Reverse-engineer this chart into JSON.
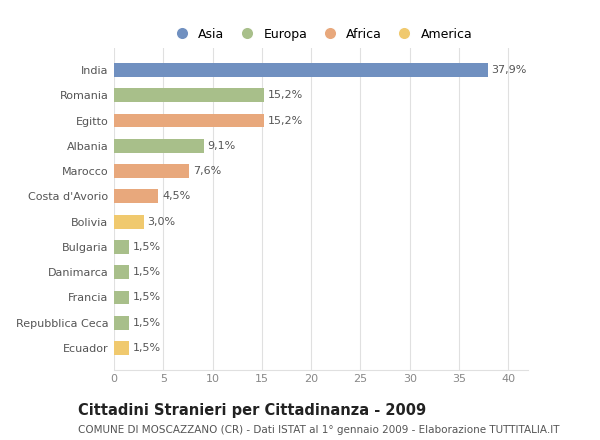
{
  "categories": [
    "India",
    "Romania",
    "Egitto",
    "Albania",
    "Marocco",
    "Costa d'Avorio",
    "Bolivia",
    "Bulgaria",
    "Danimarca",
    "Francia",
    "Repubblica Ceca",
    "Ecuador"
  ],
  "values": [
    37.9,
    15.2,
    15.2,
    9.1,
    7.6,
    4.5,
    3.0,
    1.5,
    1.5,
    1.5,
    1.5,
    1.5
  ],
  "labels": [
    "37,9%",
    "15,2%",
    "15,2%",
    "9,1%",
    "7,6%",
    "4,5%",
    "3,0%",
    "1,5%",
    "1,5%",
    "1,5%",
    "1,5%",
    "1,5%"
  ],
  "colors": [
    "#7090c0",
    "#a8bf8a",
    "#e8a87c",
    "#a8bf8a",
    "#e8a87c",
    "#e8a87c",
    "#f0c96e",
    "#a8bf8a",
    "#a8bf8a",
    "#a8bf8a",
    "#a8bf8a",
    "#f0c96e"
  ],
  "legend_labels": [
    "Asia",
    "Europa",
    "Africa",
    "America"
  ],
  "legend_colors": [
    "#7090c0",
    "#a8bf8a",
    "#e8a87c",
    "#f0c96e"
  ],
  "title": "Cittadini Stranieri per Cittadinanza - 2009",
  "subtitle": "COMUNE DI MOSCAZZANO (CR) - Dati ISTAT al 1° gennaio 2009 - Elaborazione TUTTITALIA.IT",
  "xlim": [
    0,
    42
  ],
  "xticks": [
    0,
    5,
    10,
    15,
    20,
    25,
    30,
    35,
    40
  ],
  "background_color": "#ffffff",
  "grid_color": "#e0e0e0",
  "bar_height": 0.55,
  "title_fontsize": 10.5,
  "subtitle_fontsize": 7.5,
  "tick_fontsize": 8,
  "label_fontsize": 8,
  "legend_fontsize": 9
}
